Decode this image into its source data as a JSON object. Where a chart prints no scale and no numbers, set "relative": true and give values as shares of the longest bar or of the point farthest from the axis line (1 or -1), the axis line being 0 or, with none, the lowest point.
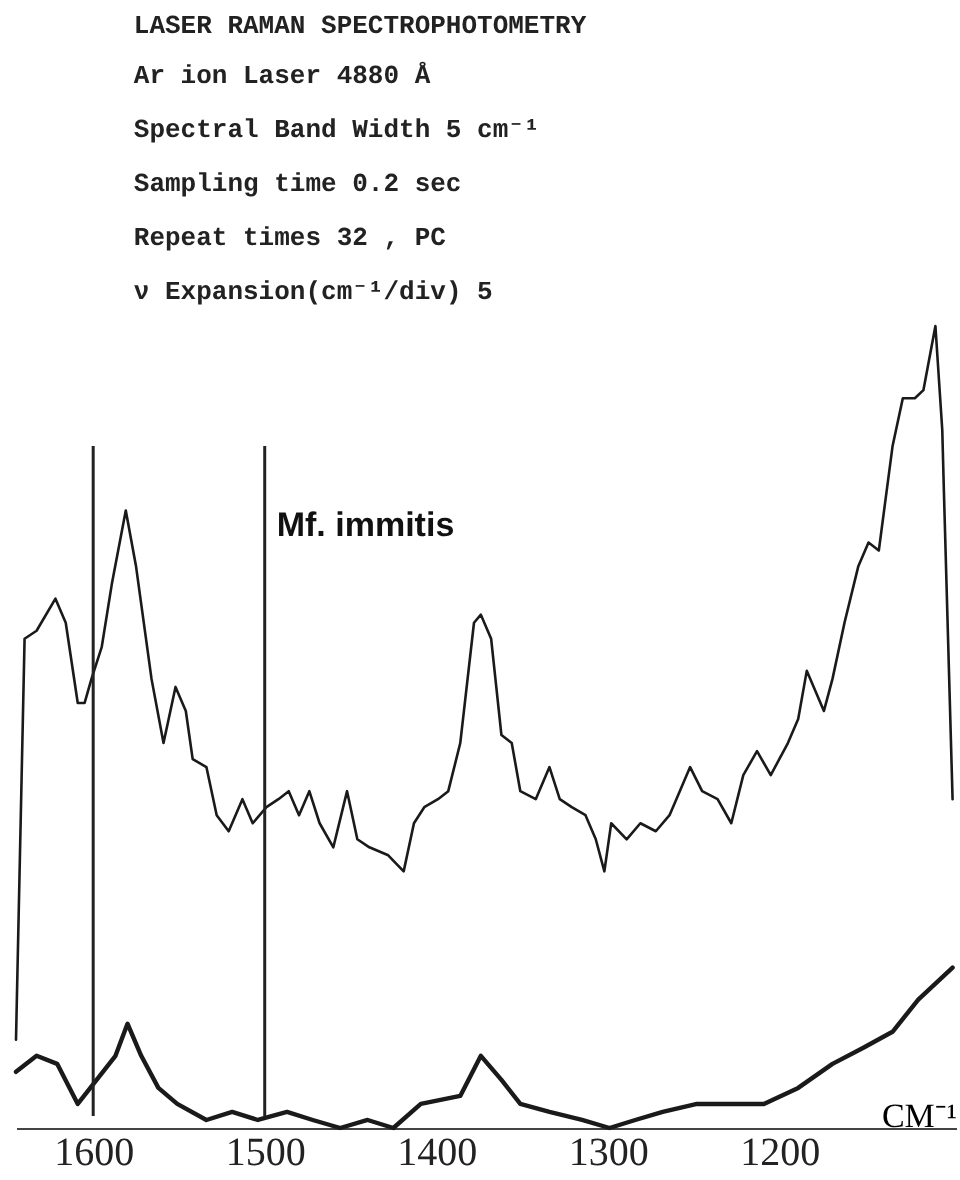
{
  "chart_data": {
    "type": "line",
    "title": "LASER RAMAN SPECTROPHOTOMETRY",
    "annotations": [
      "Ar ion Laser 4880 Å",
      "Spectral Band Width 5 cm⁻¹",
      "Sampling time 0.2 sec",
      "Repeat times  32 , PC",
      "ν Expansion(cm⁻¹/div) 5"
    ],
    "xlabel": "CM⁻¹",
    "relative": true,
    "xlim": [
      1645,
      1097
    ],
    "xticks": [
      1600,
      1500,
      1400,
      1300,
      1200
    ],
    "ref_lines": [
      {
        "axis": "x",
        "value": 1600,
        "label": null
      },
      {
        "axis": "x",
        "value": 1500,
        "label": "Mf. immitis"
      }
    ],
    "series": [
      {
        "color": "#1a1a1a",
        "x": [
          1645,
          1641,
          1640,
          1633,
          1622,
          1616,
          1609,
          1605,
          1601,
          1595,
          1589,
          1581,
          1575,
          1566,
          1559,
          1552,
          1546,
          1542,
          1534,
          1528,
          1521,
          1513,
          1507,
          1499,
          1492,
          1486,
          1480,
          1474,
          1468,
          1460,
          1452,
          1446,
          1439,
          1428,
          1419,
          1413,
          1407,
          1399,
          1393,
          1386,
          1378,
          1374,
          1368,
          1362,
          1356,
          1351,
          1342,
          1334,
          1328,
          1321,
          1313,
          1307,
          1302,
          1298,
          1289,
          1281,
          1272,
          1264,
          1252,
          1245,
          1236,
          1228,
          1221,
          1213,
          1205,
          1195,
          1189,
          1184,
          1174,
          1169,
          1162,
          1154,
          1148,
          1142,
          1134,
          1128,
          1121,
          1116,
          1109,
          1105,
          1104,
          1099
        ],
        "values": [
          0.11,
          0.51,
          0.61,
          0.62,
          0.66,
          0.63,
          0.53,
          0.53,
          0.56,
          0.6,
          0.68,
          0.77,
          0.7,
          0.56,
          0.48,
          0.55,
          0.52,
          0.46,
          0.45,
          0.39,
          0.37,
          0.41,
          0.38,
          0.4,
          0.41,
          0.42,
          0.39,
          0.42,
          0.38,
          0.35,
          0.42,
          0.36,
          0.35,
          0.34,
          0.32,
          0.38,
          0.4,
          0.41,
          0.42,
          0.48,
          0.63,
          0.64,
          0.61,
          0.49,
          0.48,
          0.42,
          0.41,
          0.45,
          0.41,
          0.4,
          0.39,
          0.36,
          0.32,
          0.38,
          0.36,
          0.38,
          0.37,
          0.39,
          0.45,
          0.42,
          0.41,
          0.38,
          0.44,
          0.47,
          0.44,
          0.48,
          0.51,
          0.57,
          0.52,
          0.56,
          0.63,
          0.7,
          0.73,
          0.72,
          0.85,
          0.91,
          0.91,
          0.92,
          1,
          0.87,
          0.79,
          0.41
        ]
      },
      {
        "color": "#1a1a1a",
        "x": [
          1645,
          1633,
          1621,
          1609,
          1598,
          1587,
          1580,
          1572,
          1562,
          1551,
          1534,
          1519,
          1504,
          1487,
          1472,
          1456,
          1440,
          1425,
          1409,
          1386,
          1374,
          1362,
          1351,
          1334,
          1315,
          1299,
          1284,
          1268,
          1248,
          1228,
          1209,
          1189,
          1169,
          1151,
          1134,
          1119,
          1104,
          1099
        ],
        "values": [
          0.07,
          0.09,
          0.08,
          0.03,
          0.06,
          0.09,
          0.13,
          0.09,
          0.05,
          0.03,
          0.01,
          0.02,
          0.01,
          0.02,
          0.01,
          0,
          0.01,
          0,
          0.03,
          0.04,
          0.09,
          0.06,
          0.03,
          0.02,
          0.01,
          0,
          0.01,
          0.02,
          0.03,
          0.03,
          0.03,
          0.05,
          0.08,
          0.1,
          0.12,
          0.16,
          0.19,
          0.2
        ]
      }
    ]
  }
}
